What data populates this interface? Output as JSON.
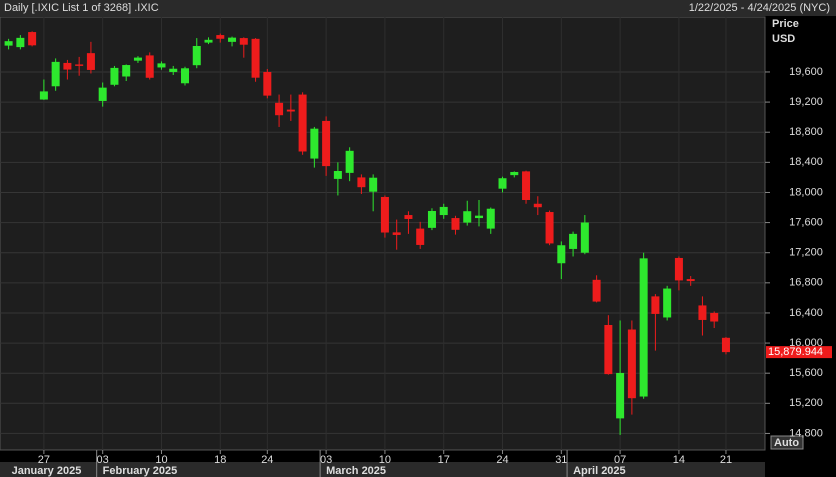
{
  "chart_data": {
    "type": "candlestick",
    "title": "Daily [.IXIC List 1 of 3268] .IXIC",
    "subtitle": "1/22/2025 - 4/24/2025 (NYC)",
    "y_axis_label": "Price",
    "y_axis_unit": "USD",
    "auto_button": "Auto",
    "up_color": "#2ee82e",
    "down_color": "#ee1c1c",
    "grid": true,
    "categories": [
      null,
      null,
      null,
      "27",
      null,
      null,
      null,
      null,
      "03",
      null,
      null,
      null,
      null,
      "10",
      null,
      null,
      null,
      null,
      "18",
      null,
      null,
      null,
      "24",
      null,
      null,
      null,
      null,
      "03",
      null,
      null,
      null,
      null,
      "10",
      null,
      null,
      null,
      null,
      "17",
      null,
      null,
      null,
      null,
      "24",
      null,
      null,
      null,
      null,
      "31",
      null,
      null,
      null,
      null,
      "07",
      null,
      null,
      null,
      null,
      "14",
      null,
      null,
      null,
      "21"
    ],
    "months": [
      "January 2025",
      "February 2025",
      "March 2025",
      "April 2025"
    ],
    "open": [
      19950,
      19930,
      20130,
      19234,
      19410,
      19720,
      19700,
      19850,
      19215,
      19430,
      19540,
      19750,
      19820,
      19660,
      19600,
      19450,
      19690,
      19990,
      20090,
      20000,
      20050,
      20040,
      19600,
      19190,
      19100,
      19300,
      18450,
      18950,
      18180,
      18260,
      18200,
      18010,
      17940,
      17470,
      17700,
      17520,
      17530,
      17700,
      17660,
      17600,
      17660,
      17520,
      18050,
      18230,
      18280,
      17850,
      17740,
      17060,
      17250,
      17200,
      16840,
      16240,
      15000,
      16180,
      15290,
      16620,
      16340,
      17130,
      16850,
      16500,
      16400,
      16070
    ],
    "high": [
      20040,
      20090,
      20140,
      19500,
      19780,
      19760,
      19800,
      20000,
      19460,
      19680,
      19700,
      19810,
      19860,
      19740,
      19680,
      19670,
      20050,
      20060,
      20110,
      20070,
      20060,
      20050,
      19640,
      19300,
      19300,
      19330,
      18870,
      19010,
      18400,
      18600,
      18240,
      18240,
      17960,
      17640,
      17750,
      17610,
      17790,
      17850,
      17690,
      17890,
      17900,
      17800,
      18210,
      18280,
      18290,
      17950,
      17760,
      17350,
      17480,
      17700,
      16900,
      16370,
      16300,
      16300,
      17200,
      16650,
      16760,
      17150,
      16890,
      16620,
      16420,
      16080
    ],
    "low": [
      19900,
      19900,
      19940,
      19230,
      19350,
      19500,
      19550,
      19580,
      19140,
      19410,
      19480,
      19720,
      19500,
      19630,
      19560,
      19420,
      19650,
      19970,
      19990,
      19940,
      19790,
      19470,
      19250,
      18870,
      18950,
      18500,
      18330,
      18220,
      17960,
      18150,
      17980,
      17750,
      17400,
      17240,
      17450,
      17250,
      17500,
      17650,
      17440,
      17560,
      17550,
      17450,
      18000,
      18200,
      17850,
      17700,
      17300,
      16850,
      17150,
      17180,
      16540,
      15580,
      14780,
      15050,
      15260,
      15900,
      16300,
      16700,
      16760,
      16100,
      16200,
      15850
    ],
    "close": [
      20009,
      20053,
      19954,
      19342,
      19734,
      19632,
      19681,
      19627,
      19392,
      19654,
      19692,
      19791,
      19523,
      19714,
      19643,
      19649,
      19945,
      20027,
      20041,
      20056,
      19962,
      19524,
      19286,
      19026,
      19075,
      18544,
      18847,
      18350,
      18285,
      18553,
      18070,
      18196,
      17468,
      17436,
      17648,
      17303,
      17754,
      17808,
      17504,
      17751,
      17692,
      17784,
      18189,
      18272,
      17900,
      17804,
      17323,
      17299,
      17450,
      17601,
      16551,
      15588,
      15603,
      15268,
      17125,
      16387,
      16724,
      16832,
      16823,
      16307,
      16286,
      15879.944
    ],
    "last_value_label": "15,879.944",
    "ylim": [
      14580,
      20330
    ],
    "yticks": [
      {
        "value": 14800,
        "label": "14,800"
      },
      {
        "value": 15200,
        "label": "15,200"
      },
      {
        "value": 15600,
        "label": "15,600"
      },
      {
        "value": 16000,
        "label": "16,000"
      },
      {
        "value": 16400,
        "label": "16,400"
      },
      {
        "value": 16800,
        "label": "16,800"
      },
      {
        "value": 17200,
        "label": "17,200"
      },
      {
        "value": 17600,
        "label": "17,600"
      },
      {
        "value": 18000,
        "label": "18,000"
      },
      {
        "value": 18400,
        "label": "18,400"
      },
      {
        "value": 18800,
        "label": "18,800"
      },
      {
        "value": 19200,
        "label": "19,200"
      },
      {
        "value": 19600,
        "label": "19,600"
      }
    ]
  }
}
